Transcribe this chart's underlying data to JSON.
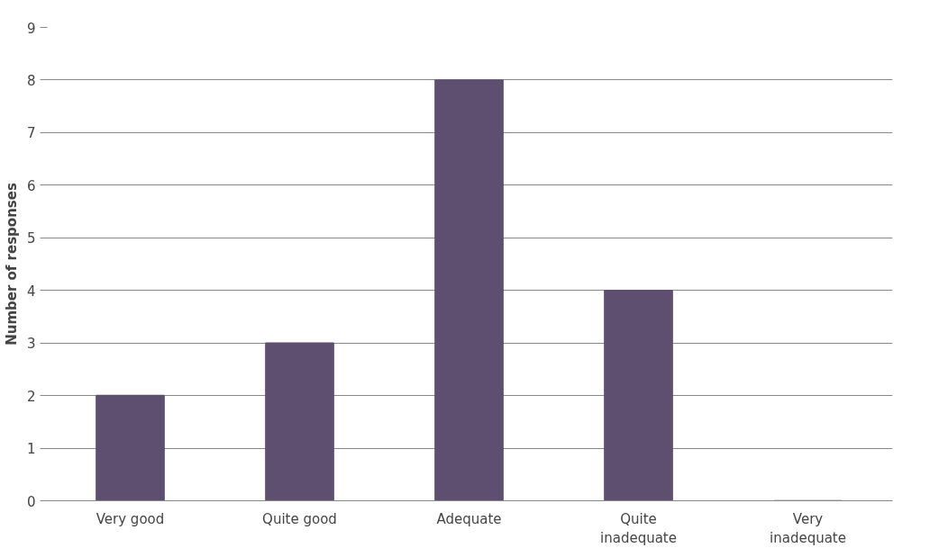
{
  "chart_data": {
    "type": "bar",
    "ylabel": "Number of responses",
    "categories": [
      "Very good",
      "Quite good",
      "Adequate",
      "Quite inadequate",
      "Very inadequate"
    ],
    "values": [
      2,
      3,
      8,
      4,
      0
    ],
    "color": "#5e4f70",
    "ylim": [
      0,
      9
    ],
    "yticks": [
      0,
      1,
      2,
      3,
      4,
      5,
      6,
      7,
      8,
      9
    ],
    "grid": "y"
  }
}
